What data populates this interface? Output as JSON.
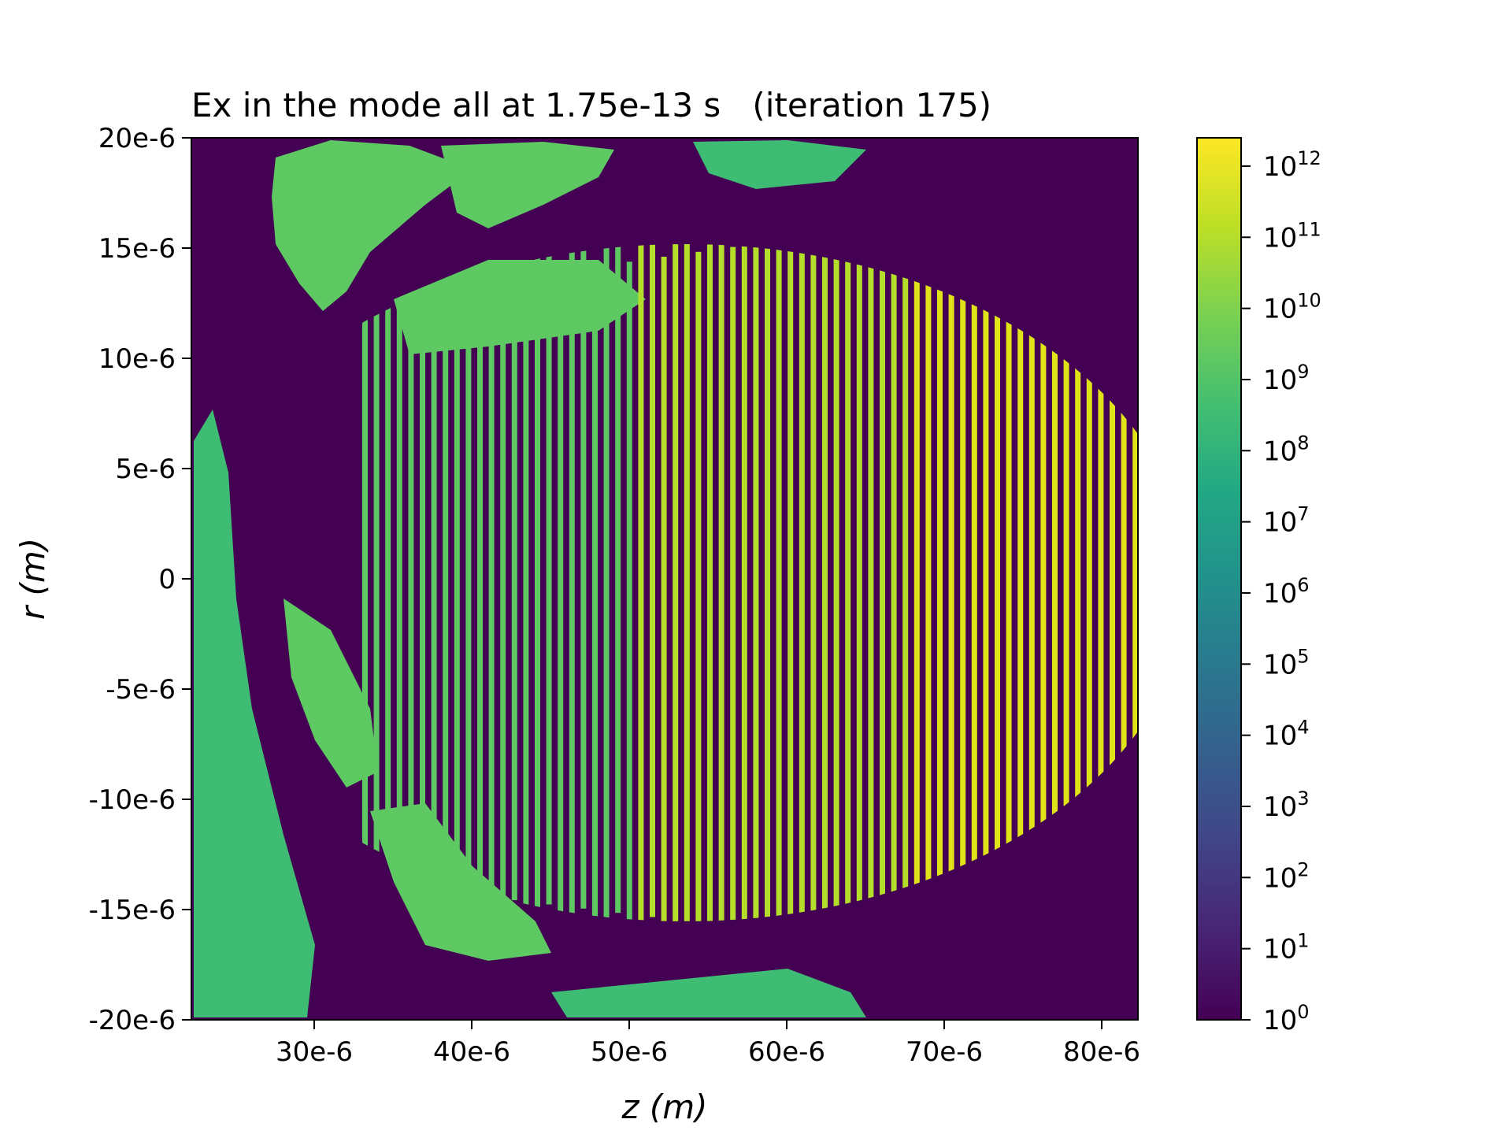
{
  "chart_data": {
    "type": "heatmap",
    "title": "Ex in the mode all at 1.75e-13 s   (iteration 175)",
    "xlabel": "z (m)",
    "ylabel": "r (m)",
    "xlim": [
      2.22e-05,
      8.23e-05
    ],
    "ylim": [
      -2e-05,
      2e-05
    ],
    "x_ticks": [
      {
        "value": 3e-05,
        "label": "30e-6"
      },
      {
        "value": 4e-05,
        "label": "40e-6"
      },
      {
        "value": 5e-05,
        "label": "50e-6"
      },
      {
        "value": 6e-05,
        "label": "60e-6"
      },
      {
        "value": 7e-05,
        "label": "70e-6"
      },
      {
        "value": 8e-05,
        "label": "80e-6"
      }
    ],
    "y_ticks": [
      {
        "value": 2e-05,
        "label": "20e-6"
      },
      {
        "value": 1.5e-05,
        "label": "15e-6"
      },
      {
        "value": 1e-05,
        "label": "10e-6"
      },
      {
        "value": 5e-06,
        "label": "5e-6"
      },
      {
        "value": 0,
        "label": "0"
      },
      {
        "value": -5e-06,
        "label": "-5e-6"
      },
      {
        "value": -1e-05,
        "label": "-10e-6"
      },
      {
        "value": -1.5e-05,
        "label": "-15e-6"
      },
      {
        "value": -2e-05,
        "label": "-20e-6"
      }
    ],
    "colorbar": {
      "scale": "log",
      "colormap": "viridis",
      "range": [
        1,
        2500000000000.0
      ],
      "ticks": [
        {
          "exponent": 0,
          "base": "10",
          "sup": "0"
        },
        {
          "exponent": 1,
          "base": "10",
          "sup": "1"
        },
        {
          "exponent": 2,
          "base": "10",
          "sup": "2"
        },
        {
          "exponent": 3,
          "base": "10",
          "sup": "3"
        },
        {
          "exponent": 4,
          "base": "10",
          "sup": "4"
        },
        {
          "exponent": 5,
          "base": "10",
          "sup": "5"
        },
        {
          "exponent": 6,
          "base": "10",
          "sup": "6"
        },
        {
          "exponent": 7,
          "base": "10",
          "sup": "7"
        },
        {
          "exponent": 8,
          "base": "10",
          "sup": "8"
        },
        {
          "exponent": 9,
          "base": "10",
          "sup": "9"
        },
        {
          "exponent": 10,
          "base": "10",
          "sup": "10"
        },
        {
          "exponent": 11,
          "base": "10",
          "sup": "11"
        },
        {
          "exponent": 12,
          "base": "10",
          "sup": "12"
        }
      ]
    },
    "colors": {
      "background": "#440154",
      "low_green": "#3fbc73",
      "mid_green": "#5ec962",
      "bright": "#b5de2b",
      "peak": "#dfe318"
    }
  }
}
